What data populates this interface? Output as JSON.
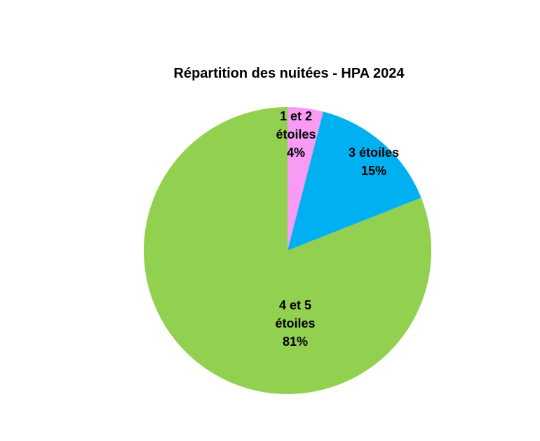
{
  "chart_data": {
    "type": "pie",
    "title": "Répartition des nuitées - HPA 2024",
    "categories": [
      "1 et 2 étoiles",
      "3 étoiles",
      "4 et 5 étoiles"
    ],
    "values": [
      4,
      15,
      81
    ],
    "value_labels": [
      "4%",
      "15%",
      "81%"
    ],
    "colors": [
      "#f79bf5",
      "#00b0f0",
      "#92d050"
    ]
  }
}
